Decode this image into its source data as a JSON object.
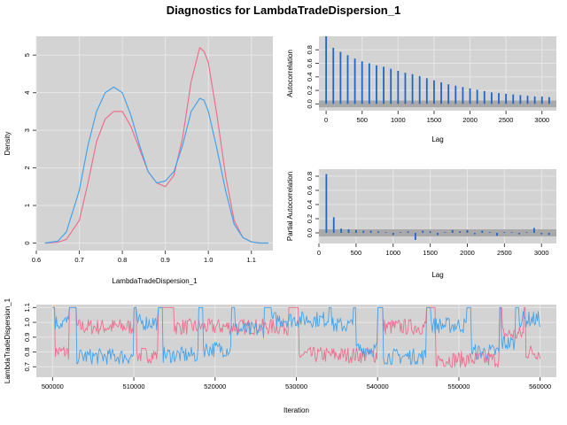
{
  "title": "Diagnostics for LambdaTradeDispersion_1",
  "colors": {
    "chain1": "#ee6f8f",
    "chain2": "#45a3ea",
    "bar": "#2166c6",
    "band": "#a9a9a9",
    "panel": "#d3d3d3"
  },
  "chart_data": [
    {
      "id": "density",
      "type": "line",
      "xlabel": "LambdaTradeDispersion_1",
      "ylabel": "Density",
      "xlim": [
        0.6,
        1.15
      ],
      "ylim": [
        -0.2,
        5.5
      ],
      "xticks": [
        "0.6",
        "0.7",
        "0.8",
        "0.9",
        "1.0",
        "1.1"
      ],
      "yticks": [
        "0",
        "1",
        "2",
        "3",
        "4",
        "5"
      ],
      "series": [
        {
          "color": "#ee6f8f",
          "x": [
            0.62,
            0.65,
            0.67,
            0.7,
            0.72,
            0.74,
            0.76,
            0.78,
            0.8,
            0.82,
            0.84,
            0.86,
            0.88,
            0.9,
            0.92,
            0.94,
            0.96,
            0.98,
            0.99,
            1.0,
            1.02,
            1.04,
            1.06,
            1.08,
            1.1,
            1.12
          ],
          "y": [
            0.0,
            0.02,
            0.1,
            0.6,
            1.6,
            2.7,
            3.3,
            3.5,
            3.5,
            3.1,
            2.5,
            1.9,
            1.6,
            1.5,
            1.8,
            2.8,
            4.3,
            5.2,
            5.1,
            4.8,
            3.4,
            1.8,
            0.6,
            0.15,
            0.03,
            0.0
          ]
        },
        {
          "color": "#45a3ea",
          "x": [
            0.62,
            0.65,
            0.67,
            0.7,
            0.72,
            0.74,
            0.76,
            0.78,
            0.8,
            0.82,
            0.84,
            0.86,
            0.88,
            0.9,
            0.92,
            0.94,
            0.96,
            0.98,
            0.99,
            1.0,
            1.02,
            1.04,
            1.06,
            1.08,
            1.1,
            1.12,
            1.14
          ],
          "y": [
            0.0,
            0.05,
            0.3,
            1.4,
            2.6,
            3.5,
            4.0,
            4.15,
            4.0,
            3.4,
            2.6,
            1.9,
            1.6,
            1.65,
            1.9,
            2.6,
            3.5,
            3.85,
            3.8,
            3.5,
            2.5,
            1.4,
            0.5,
            0.15,
            0.03,
            0.0,
            0.0
          ]
        }
      ]
    },
    {
      "id": "acf",
      "type": "bar",
      "xlabel": "Lag",
      "ylabel": "Autocorrelation",
      "xlim": [
        -100,
        3200
      ],
      "ylim": [
        -0.1,
        1.0
      ],
      "xticks": [
        "0",
        "500",
        "1000",
        "1500",
        "2000",
        "2500",
        "3000"
      ],
      "yticks": [
        "0.0",
        "0.2",
        "0.4",
        "0.6",
        "0.8"
      ],
      "band": [
        -0.05,
        0.05
      ],
      "lags": [
        0,
        100,
        200,
        300,
        400,
        500,
        600,
        700,
        800,
        900,
        1000,
        1100,
        1200,
        1300,
        1400,
        1500,
        1600,
        1700,
        1800,
        1900,
        2000,
        2100,
        2200,
        2300,
        2400,
        2500,
        2600,
        2700,
        2800,
        2900,
        3000,
        3100
      ],
      "values": [
        1.0,
        0.83,
        0.77,
        0.72,
        0.67,
        0.63,
        0.6,
        0.57,
        0.55,
        0.52,
        0.49,
        0.46,
        0.44,
        0.41,
        0.38,
        0.35,
        0.32,
        0.29,
        0.27,
        0.25,
        0.23,
        0.21,
        0.19,
        0.17,
        0.16,
        0.15,
        0.14,
        0.13,
        0.12,
        0.11,
        0.11,
        0.1
      ]
    },
    {
      "id": "pacf",
      "type": "bar",
      "xlabel": "Lag",
      "ylabel": "Partial Autocorrelation",
      "xlim": [
        0,
        3200
      ],
      "ylim": [
        -0.15,
        0.9
      ],
      "xticks": [
        "0",
        "500",
        "1000",
        "1500",
        "2000",
        "2500",
        "3000"
      ],
      "yticks": [
        "0.0",
        "0.2",
        "0.4",
        "0.6",
        "0.8"
      ],
      "band": [
        -0.05,
        0.05
      ],
      "lags": [
        100,
        200,
        300,
        400,
        500,
        600,
        700,
        800,
        900,
        1000,
        1100,
        1200,
        1300,
        1400,
        1500,
        1600,
        1700,
        1800,
        1900,
        2000,
        2100,
        2200,
        2300,
        2400,
        2500,
        2600,
        2700,
        2800,
        2900,
        3000,
        3100
      ],
      "values": [
        0.83,
        0.22,
        0.06,
        0.05,
        0.04,
        0.03,
        0.03,
        0.02,
        0.01,
        -0.03,
        0.01,
        0.02,
        -0.1,
        0.03,
        0.02,
        -0.03,
        0.01,
        0.04,
        0.02,
        0.04,
        -0.02,
        0.03,
        0.01,
        -0.04,
        0.01,
        0.01,
        -0.02,
        0.01,
        0.07,
        -0.02,
        -0.03
      ]
    },
    {
      "id": "trace",
      "type": "line",
      "xlabel": "Iteration",
      "ylabel": "LambdaTradeDispersion_1",
      "xlim": [
        498000,
        562000
      ],
      "ylim": [
        0.63,
        1.12
      ],
      "xticks": [
        "500000",
        "510000",
        "520000",
        "530000",
        "540000",
        "550000",
        "560000"
      ],
      "yticks": [
        "0.7",
        "0.8",
        "0.9",
        "1.0",
        "1.1"
      ],
      "segments": [
        {
          "color": "#ee6f8f",
          "levels": [
            [
              500000,
              0.8
            ],
            [
              502000,
              0.97
            ],
            [
              510000,
              0.78
            ],
            [
              513000,
              0.97
            ],
            [
              529000,
              0.78
            ],
            [
              540000,
              0.97
            ],
            [
              546000,
              0.75
            ],
            [
              555000,
              0.92
            ],
            [
              558000,
              0.8
            ],
            [
              560000,
              0.8
            ]
          ]
        },
        {
          "color": "#45a3ea",
          "levels": [
            [
              500000,
              1.0
            ],
            [
              502000,
              0.77
            ],
            [
              510000,
              1.0
            ],
            [
              513000,
              0.78
            ],
            [
              518000,
              0.82
            ],
            [
              522000,
              0.95
            ],
            [
              526000,
              1.02
            ],
            [
              534000,
              0.98
            ],
            [
              537000,
              0.82
            ],
            [
              540000,
              0.77
            ],
            [
              546000,
              0.98
            ],
            [
              551000,
              0.8
            ],
            [
              555000,
              0.86
            ],
            [
              557000,
              1.02
            ],
            [
              560000,
              1.02
            ]
          ]
        }
      ]
    }
  ]
}
